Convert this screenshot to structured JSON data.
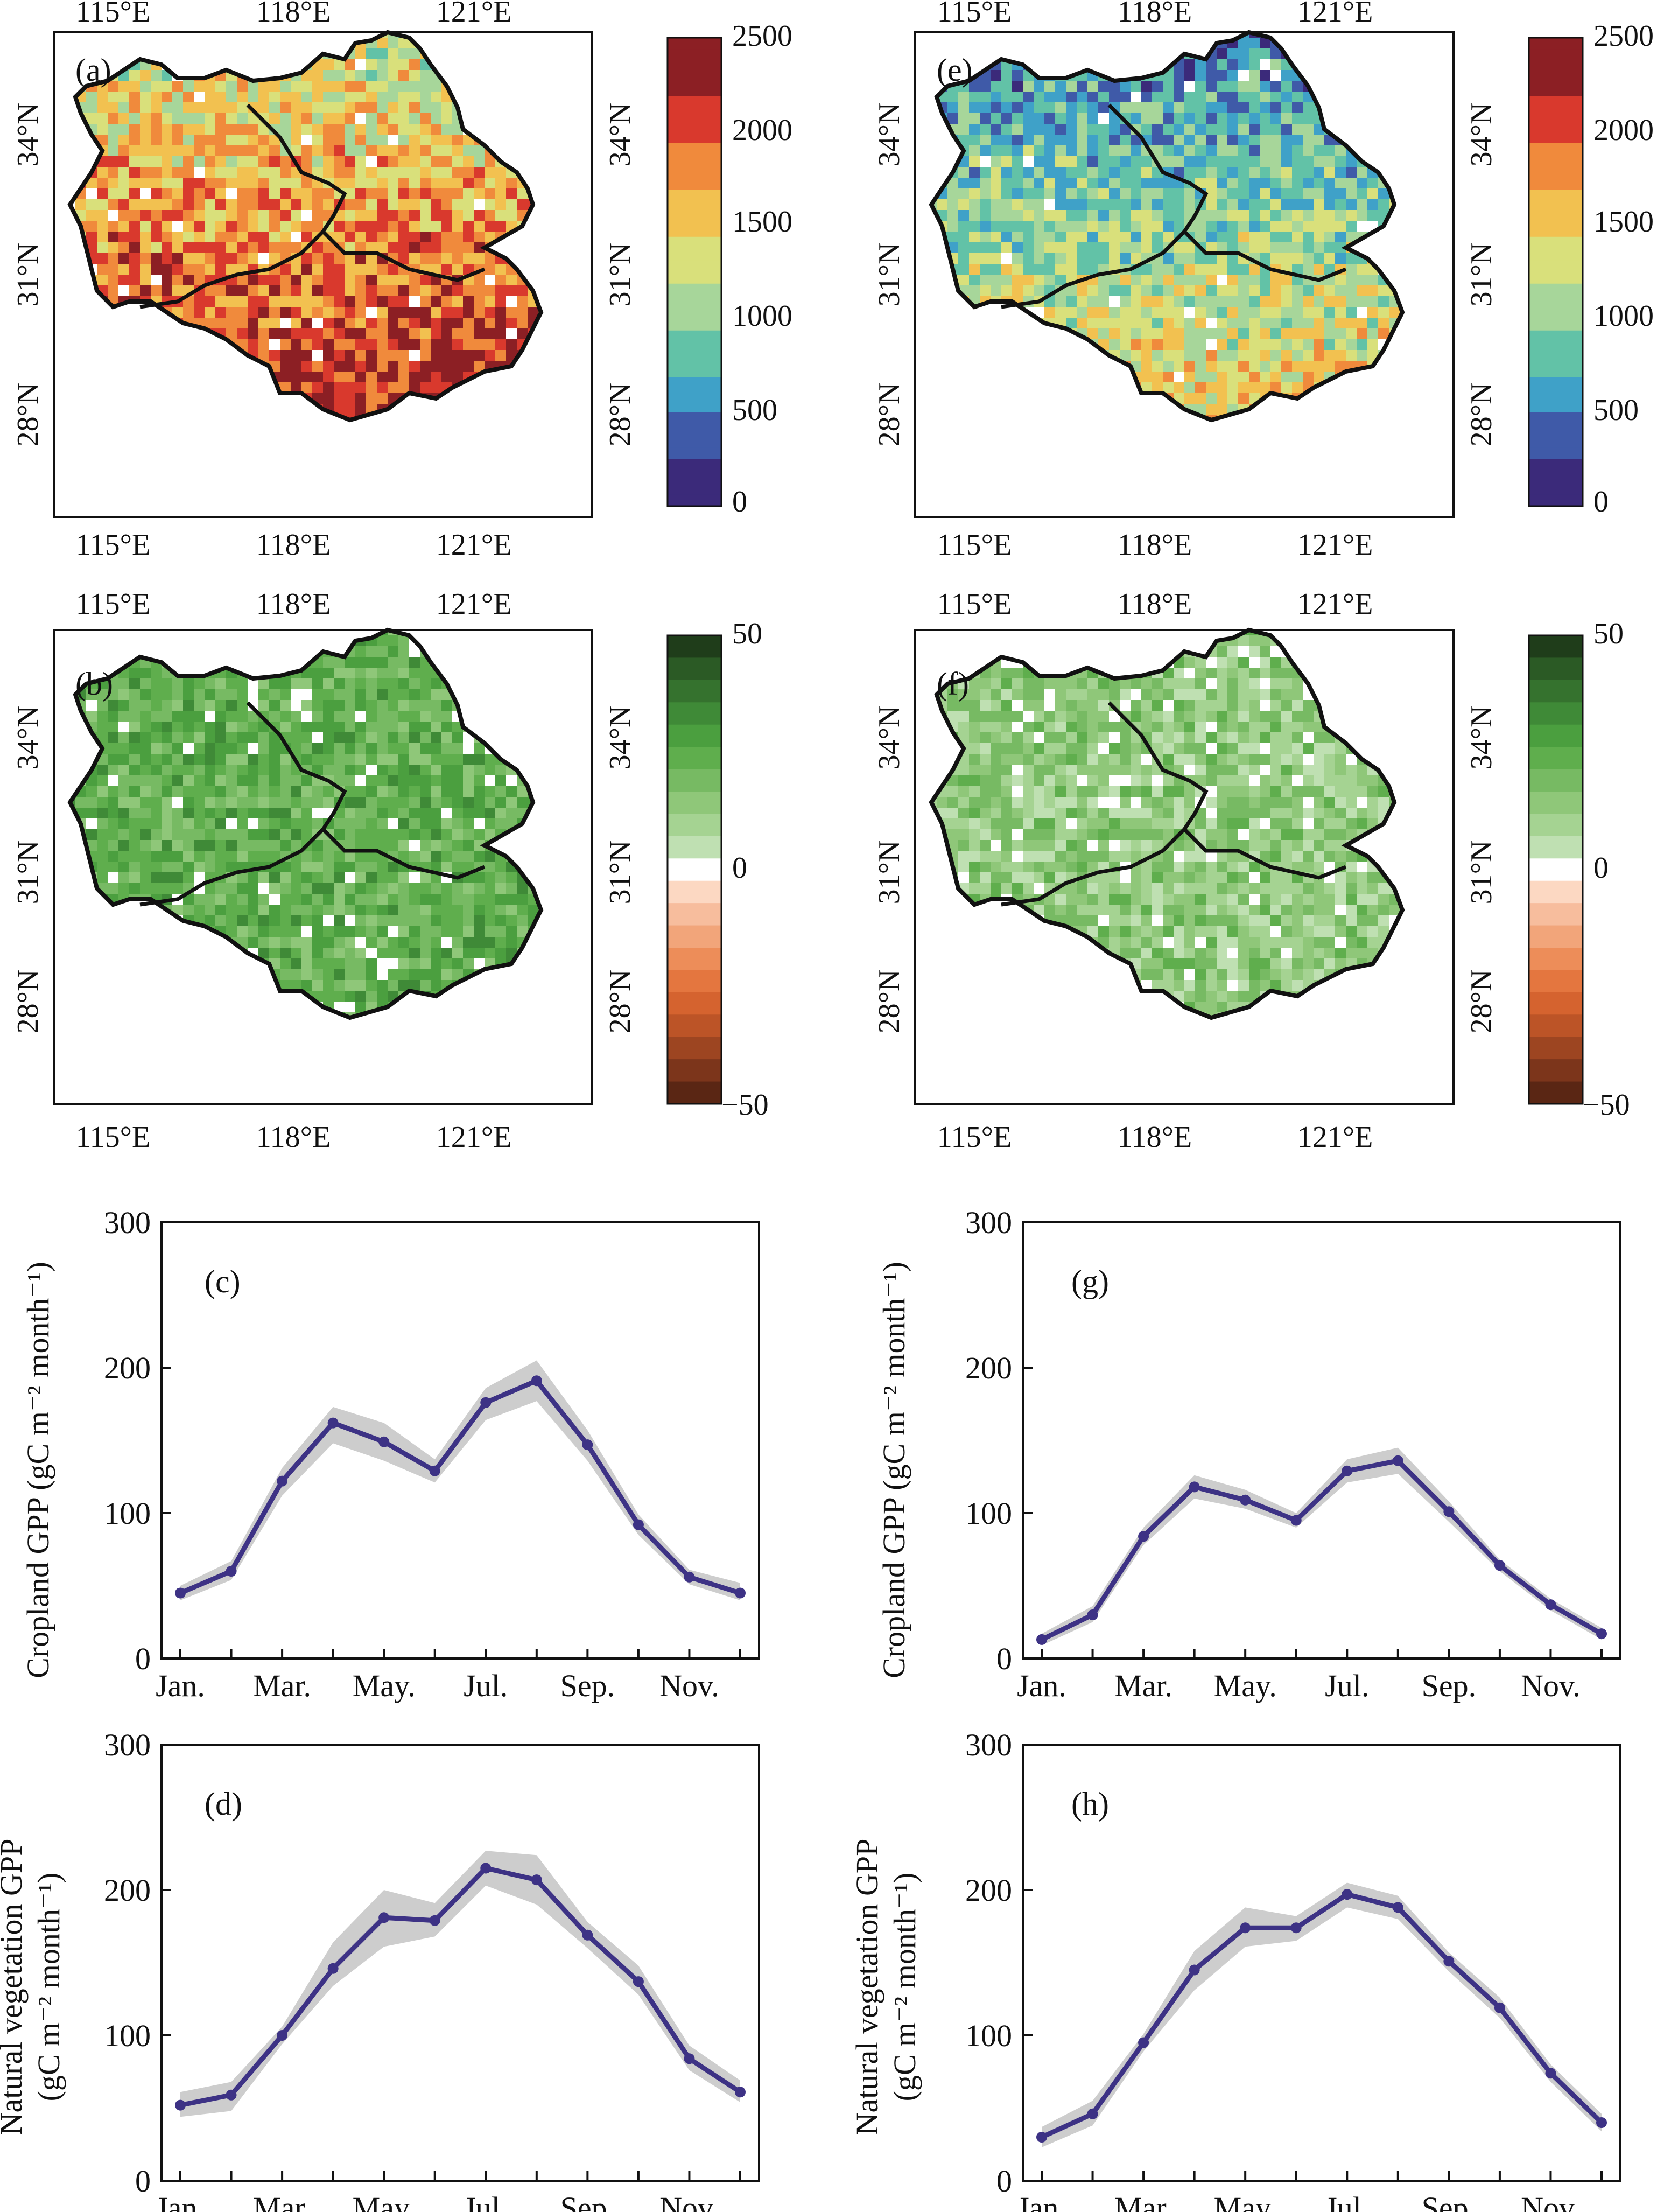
{
  "colors": {
    "gpp_scale": [
      "#3b2a7a",
      "#3f5aa8",
      "#3fa1c8",
      "#62c2a7",
      "#a7d69a",
      "#d9e07b",
      "#f2c150",
      "#f08a3c",
      "#d9392d",
      "#8c1f24"
    ],
    "diff_positive": [
      "#ffffff",
      "#bfe0b2",
      "#a5d392",
      "#8fc779",
      "#77ba63",
      "#5fae4d",
      "#4b9f3f",
      "#3f8a37",
      "#35722e",
      "#2b5a25",
      "#1f3d1a"
    ],
    "diff_negative": [
      "#ffffff",
      "#fcd8c2",
      "#f7bd9d",
      "#f2a57a",
      "#ed8d59",
      "#e4763f",
      "#d5632f",
      "#bc5427",
      "#9d4521",
      "#7c351b",
      "#5a2614"
    ],
    "line": "#3d3285",
    "band": "#c8c8c8",
    "map_outline": "#111111"
  },
  "map_panels": [
    {
      "id": "a",
      "label": "(a)",
      "top_ticks": [
        "115°E",
        "118°E",
        "121°E"
      ],
      "bottom_ticks": [
        "115°E",
        "118°E",
        "121°E"
      ],
      "left_ticks": [
        "34°N",
        "31°N",
        "28°N"
      ],
      "right_ticks": [
        "34°N",
        "31°N",
        "28°N"
      ],
      "colorbar_labels": [
        "2500",
        "2000",
        "1500",
        "1000",
        "500",
        "0"
      ],
      "scale": "gpp",
      "mean_level": 0.72
    },
    {
      "id": "e",
      "label": "(e)",
      "top_ticks": [
        "115°E",
        "118°E",
        "121°E"
      ],
      "bottom_ticks": [
        "115°E",
        "118°E",
        "121°E"
      ],
      "left_ticks": [
        "34°N",
        "31°N",
        "28°N"
      ],
      "right_ticks": [
        "34°N",
        "31°N",
        "28°N"
      ],
      "colorbar_labels": [
        "2500",
        "2000",
        "1500",
        "1000",
        "500",
        "0"
      ],
      "scale": "gpp",
      "mean_level": 0.42
    },
    {
      "id": "b",
      "label": "(b)",
      "top_ticks": [
        "115°E",
        "118°E",
        "121°E"
      ],
      "bottom_ticks": [
        "115°E",
        "118°E",
        "121°E"
      ],
      "left_ticks": [
        "34°N",
        "31°N",
        "28°N"
      ],
      "right_ticks": [
        "34°N",
        "31°N",
        "28°N"
      ],
      "colorbar_labels": [
        "50",
        "0",
        "−50"
      ],
      "scale": "diff",
      "mean_level": 0.58
    },
    {
      "id": "f",
      "label": "(f)",
      "top_ticks": [
        "115°E",
        "118°E",
        "121°E"
      ],
      "bottom_ticks": [
        "115°E",
        "118°E",
        "121°E"
      ],
      "left_ticks": [
        "34°N",
        "31°N",
        "28°N"
      ],
      "right_ticks": [
        "34°N",
        "31°N",
        "28°N"
      ],
      "colorbar_labels": [
        "50",
        "0",
        "−50"
      ],
      "scale": "diff",
      "mean_level": 0.4
    }
  ],
  "chart_data": [
    {
      "id": "c",
      "type": "line",
      "label": "(c)",
      "ylabel": "Cropland GPP (gC m⁻² month⁻¹)",
      "xlabel": "",
      "x": [
        "Jan.",
        "Feb.",
        "Mar.",
        "Apr.",
        "May.",
        "Jun.",
        "Jul.",
        "Aug.",
        "Sep.",
        "Oct.",
        "Nov.",
        "Dec."
      ],
      "x_tick_labels": [
        "Jan.",
        "Mar.",
        "May.",
        "Jul.",
        "Sep.",
        "Nov."
      ],
      "y_ticks": [
        0,
        100,
        200,
        300
      ],
      "ylim": [
        0,
        300
      ],
      "grid": false,
      "values": [
        45,
        60,
        122,
        162,
        149,
        129,
        176,
        191,
        147,
        92,
        56,
        45
      ],
      "band_lower": [
        40,
        54,
        112,
        148,
        136,
        121,
        164,
        177,
        136,
        85,
        51,
        40
      ],
      "band_upper": [
        50,
        67,
        131,
        173,
        162,
        137,
        186,
        205,
        157,
        99,
        61,
        52
      ]
    },
    {
      "id": "g",
      "type": "line",
      "label": "(g)",
      "ylabel": "Cropland GPP (gC m⁻² month⁻¹)",
      "xlabel": "",
      "x": [
        "Jan.",
        "Feb.",
        "Mar.",
        "Apr.",
        "May.",
        "Jun.",
        "Jul.",
        "Aug.",
        "Sep.",
        "Oct.",
        "Nov.",
        "Dec."
      ],
      "x_tick_labels": [
        "Jan.",
        "Mar.",
        "May.",
        "Jul.",
        "Sep.",
        "Nov."
      ],
      "y_ticks": [
        0,
        100,
        200,
        300
      ],
      "ylim": [
        0,
        300
      ],
      "grid": false,
      "values": [
        13,
        30,
        84,
        118,
        109,
        95,
        129,
        136,
        101,
        64,
        37,
        17
      ],
      "band_lower": [
        9,
        25,
        78,
        110,
        103,
        90,
        121,
        127,
        94,
        60,
        33,
        13
      ],
      "band_upper": [
        17,
        36,
        90,
        126,
        116,
        100,
        137,
        145,
        108,
        68,
        41,
        21
      ]
    },
    {
      "id": "d",
      "type": "line",
      "label": "(d)",
      "ylabel_lines": [
        "Natural vegetation GPP",
        "(gC m⁻² month⁻¹)"
      ],
      "xlabel": "",
      "x": [
        "Jan.",
        "Feb.",
        "Mar.",
        "Apr.",
        "May.",
        "Jun.",
        "Jul.",
        "Aug.",
        "Sep.",
        "Oct.",
        "Nov.",
        "Dec."
      ],
      "x_tick_labels": [
        "Jan.",
        "Mar.",
        "May.",
        "Jul.",
        "Sep.",
        "Nov."
      ],
      "y_ticks": [
        0,
        100,
        200,
        300
      ],
      "ylim": [
        0,
        300
      ],
      "grid": false,
      "values": [
        52,
        59,
        100,
        146,
        181,
        179,
        215,
        207,
        169,
        137,
        84,
        61
      ],
      "band_lower": [
        44,
        48,
        94,
        134,
        161,
        168,
        203,
        190,
        160,
        128,
        76,
        54
      ],
      "band_upper": [
        61,
        68,
        106,
        164,
        200,
        191,
        227,
        224,
        178,
        148,
        93,
        69
      ]
    },
    {
      "id": "h",
      "type": "line",
      "label": "(h)",
      "ylabel_lines": [
        "Natural vegetation GPP",
        "(gC m⁻² month⁻¹)"
      ],
      "xlabel": "",
      "x": [
        "Jan.",
        "Feb.",
        "Mar.",
        "Apr.",
        "May.",
        "Jun.",
        "Jul.",
        "Aug.",
        "Sep.",
        "Oct.",
        "Nov.",
        "Dec."
      ],
      "x_tick_labels": [
        "Jan.",
        "Mar.",
        "May.",
        "Jul.",
        "Sep.",
        "Nov."
      ],
      "y_ticks": [
        0,
        100,
        200,
        300
      ],
      "ylim": [
        0,
        300
      ],
      "grid": false,
      "values": [
        30,
        46,
        95,
        145,
        174,
        174,
        197,
        188,
        151,
        119,
        74,
        40
      ],
      "band_lower": [
        23,
        38,
        89,
        131,
        161,
        165,
        188,
        180,
        144,
        112,
        68,
        34
      ],
      "band_upper": [
        37,
        55,
        101,
        158,
        188,
        182,
        205,
        196,
        157,
        126,
        80,
        46
      ]
    }
  ]
}
